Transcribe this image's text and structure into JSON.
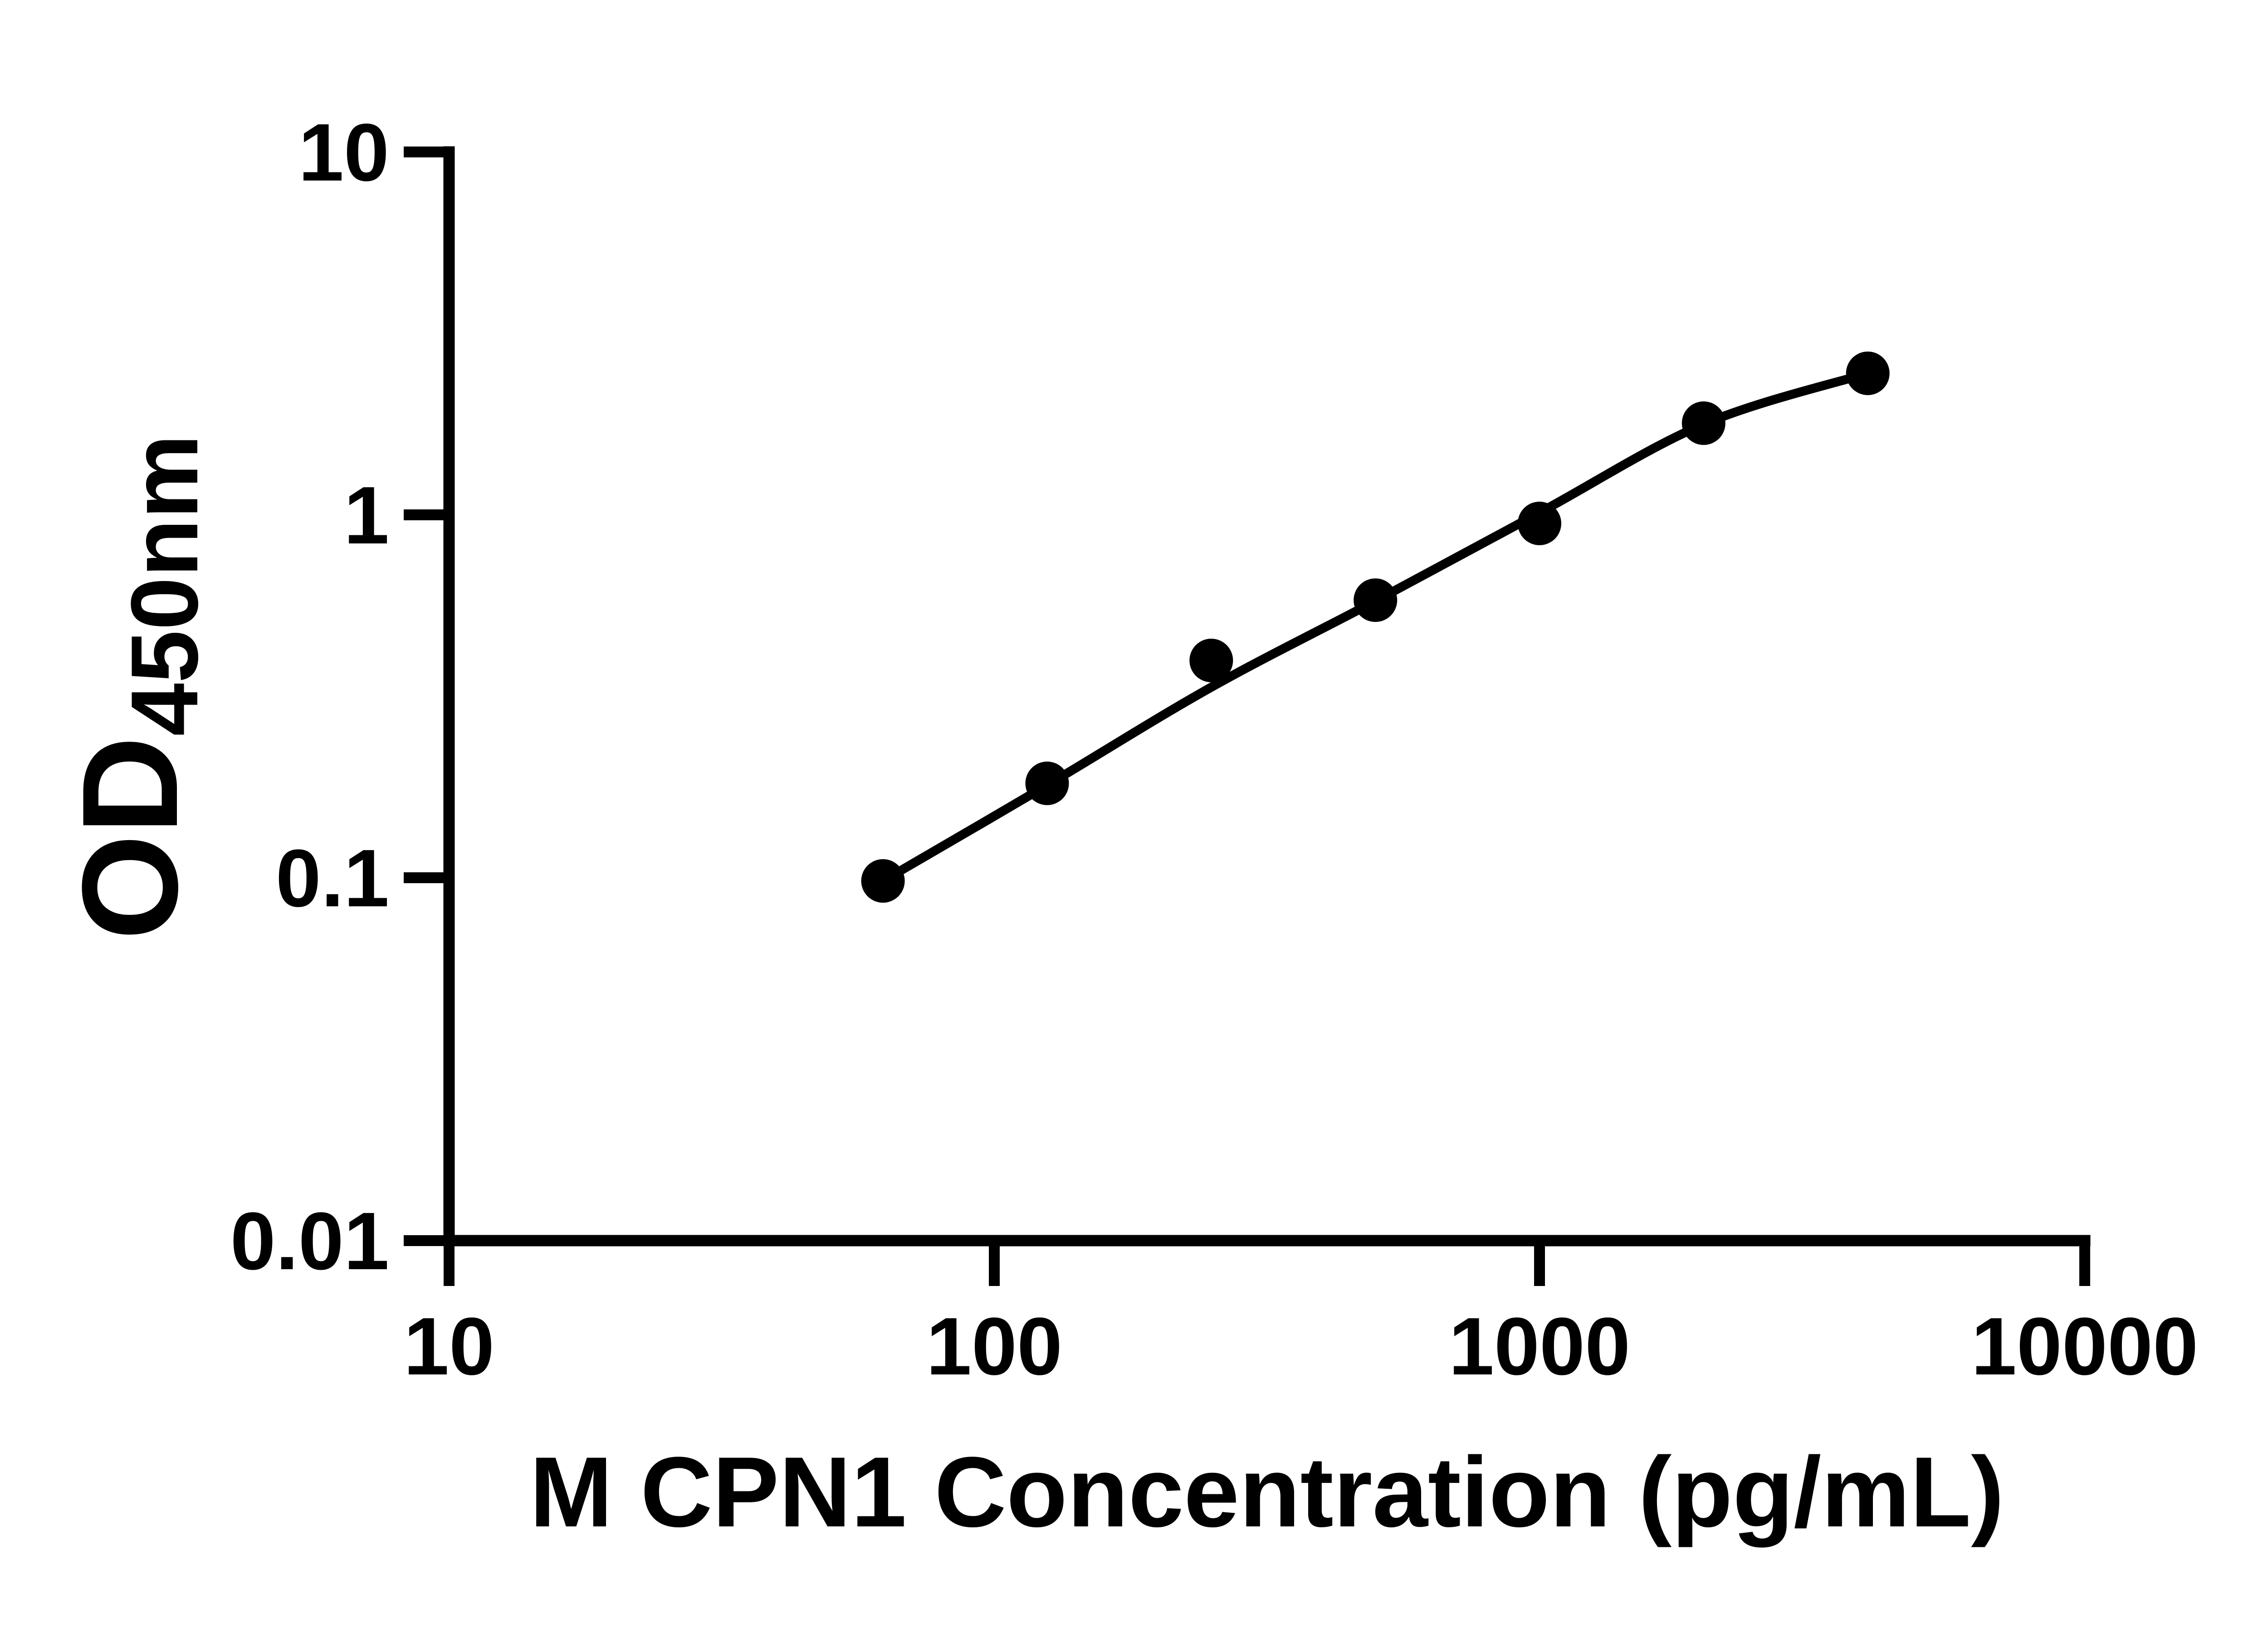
{
  "chart_data": {
    "type": "scatter",
    "title": "",
    "xlabel": "M CPN1 Concentration (pg/mL)",
    "ylabel_main": "OD",
    "ylabel_sub": "450nm",
    "x_scale": "log",
    "y_scale": "log",
    "xlim": [
      10,
      10000
    ],
    "ylim": [
      0.01,
      10
    ],
    "x_ticks": [
      10,
      100,
      1000,
      10000
    ],
    "x_tick_labels": [
      "10",
      "100",
      "1000",
      "10000"
    ],
    "y_ticks": [
      10,
      1,
      0.1,
      0.01
    ],
    "y_tick_labels": [
      "10",
      "1",
      "0.1",
      "0.01"
    ],
    "grid": false,
    "legend": "none",
    "background_color": "#ffffff",
    "marker_color": "#000000",
    "line_color": "#000000",
    "series": [
      {
        "name": "standard-points",
        "kind": "points",
        "x": [
          62.5,
          125,
          250,
          500,
          1000,
          2000,
          4000
        ],
        "y": [
          0.098,
          0.182,
          0.397,
          0.582,
          0.947,
          1.789,
          2.455
        ]
      },
      {
        "name": "fit-curve",
        "kind": "smooth-line",
        "x": [
          62.5,
          125,
          250,
          500,
          1000,
          2000,
          4000
        ],
        "y": [
          0.098,
          0.18,
          0.335,
          0.579,
          1.014,
          1.778,
          2.455
        ]
      }
    ]
  }
}
